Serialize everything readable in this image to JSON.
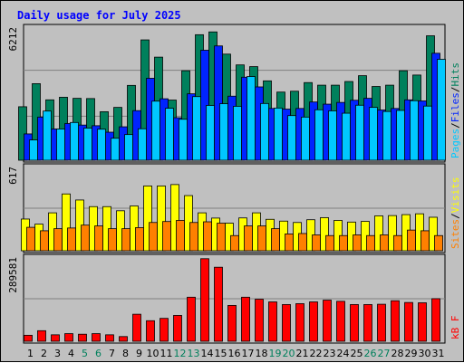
{
  "chart_data": [
    {
      "type": "bar",
      "title": "Daily usage for July 2025",
      "categories": [
        "1",
        "2",
        "3",
        "4",
        "5",
        "6",
        "7",
        "8",
        "9",
        "10",
        "11",
        "12",
        "13",
        "14",
        "15",
        "16",
        "17",
        "18",
        "19",
        "20",
        "21",
        "22",
        "23",
        "24",
        "25",
        "26",
        "27",
        "28",
        "29",
        "30",
        "31"
      ],
      "weekend_days": [
        "5",
        "6",
        "12",
        "13",
        "19",
        "20",
        "26",
        "27"
      ],
      "y_max_label": "6212",
      "ylim": [
        0,
        6212
      ],
      "series": [
        {
          "name": "Hits",
          "color": "#00805c",
          "values": [
            2480,
            3550,
            2800,
            2920,
            2870,
            2860,
            2250,
            2450,
            3470,
            5580,
            4780,
            2790,
            4150,
            5820,
            5950,
            4920,
            4420,
            4340,
            3680,
            3160,
            3200,
            3600,
            3480,
            3480,
            3650,
            3920,
            3420,
            3480,
            4150,
            3950,
            5770
          ]
        },
        {
          "name": "Files",
          "color": "#0024ff",
          "values": [
            1220,
            2000,
            1450,
            1700,
            1630,
            1600,
            1300,
            1550,
            2300,
            3800,
            2850,
            1970,
            3080,
            5100,
            5300,
            2970,
            3850,
            3400,
            2400,
            2370,
            2400,
            2700,
            2600,
            2680,
            2780,
            2870,
            2330,
            2400,
            2800,
            2750,
            4960
          ]
        },
        {
          "name": "Pages",
          "color": "#00c8ff",
          "values": [
            940,
            2280,
            1450,
            1750,
            1490,
            1440,
            1020,
            1190,
            1460,
            2740,
            2410,
            1900,
            2950,
            2540,
            2620,
            2500,
            3880,
            2630,
            2420,
            2070,
            2000,
            2340,
            2290,
            2180,
            2550,
            2450,
            2260,
            2310,
            2760,
            2510,
            4680
          ]
        }
      ],
      "legend": "right-vertical",
      "grid": true
    },
    {
      "type": "bar",
      "y_max_label": "617",
      "ylim": [
        0,
        617
      ],
      "series": [
        {
          "name": "Visits",
          "color": "#ffff00",
          "values": [
            230,
            193,
            275,
            412,
            368,
            320,
            320,
            290,
            325,
            470,
            470,
            480,
            400,
            275,
            237,
            200,
            238,
            275,
            228,
            215,
            205,
            225,
            240,
            220,
            208,
            213,
            253,
            255,
            262,
            268,
            243
          ]
        },
        {
          "name": "Sites",
          "color": "#ff8000",
          "values": [
            170,
            145,
            160,
            165,
            186,
            180,
            160,
            160,
            168,
            205,
            212,
            220,
            205,
            210,
            200,
            110,
            180,
            180,
            160,
            122,
            125,
            115,
            110,
            110,
            115,
            110,
            115,
            110,
            150,
            145,
            110
          ]
        }
      ],
      "grid": true
    },
    {
      "type": "bar",
      "y_max_label": "289581",
      "ylim": [
        0,
        289581
      ],
      "series": [
        {
          "name": "kB F",
          "color": "#ff0000",
          "values": [
            20500,
            36000,
            22000,
            26000,
            24000,
            26000,
            22000,
            16000,
            92000,
            70000,
            78000,
            88000,
            150000,
            281000,
            252000,
            122000,
            150000,
            143000,
            134000,
            125000,
            128000,
            134000,
            140000,
            136000,
            125000,
            125000,
            126000,
            138000,
            132000,
            131000,
            145000
          ]
        }
      ],
      "grid": true
    }
  ],
  "labels": {
    "panel1_right": [
      {
        "text": "Pages",
        "color": "#00c8ff"
      },
      {
        "text": "/",
        "color": "#000000"
      },
      {
        "text": "Files",
        "color": "#0024ff"
      },
      {
        "text": "/",
        "color": "#000000"
      },
      {
        "text": "Hits",
        "color": "#00805c"
      }
    ],
    "panel2_right": [
      {
        "text": "Sites",
        "color": "#ff8000"
      },
      {
        "text": "/",
        "color": "#000000"
      },
      {
        "text": "Visits",
        "color": "#ffff00"
      }
    ],
    "panel3_right": [
      {
        "text": "kB F",
        "color": "#ff0000"
      }
    ]
  },
  "colors": {
    "title": "#0000ff",
    "weekday": "#000000",
    "weekend": "#00805c",
    "panel_bg": "#c0c0c0",
    "grid": "#808080"
  }
}
